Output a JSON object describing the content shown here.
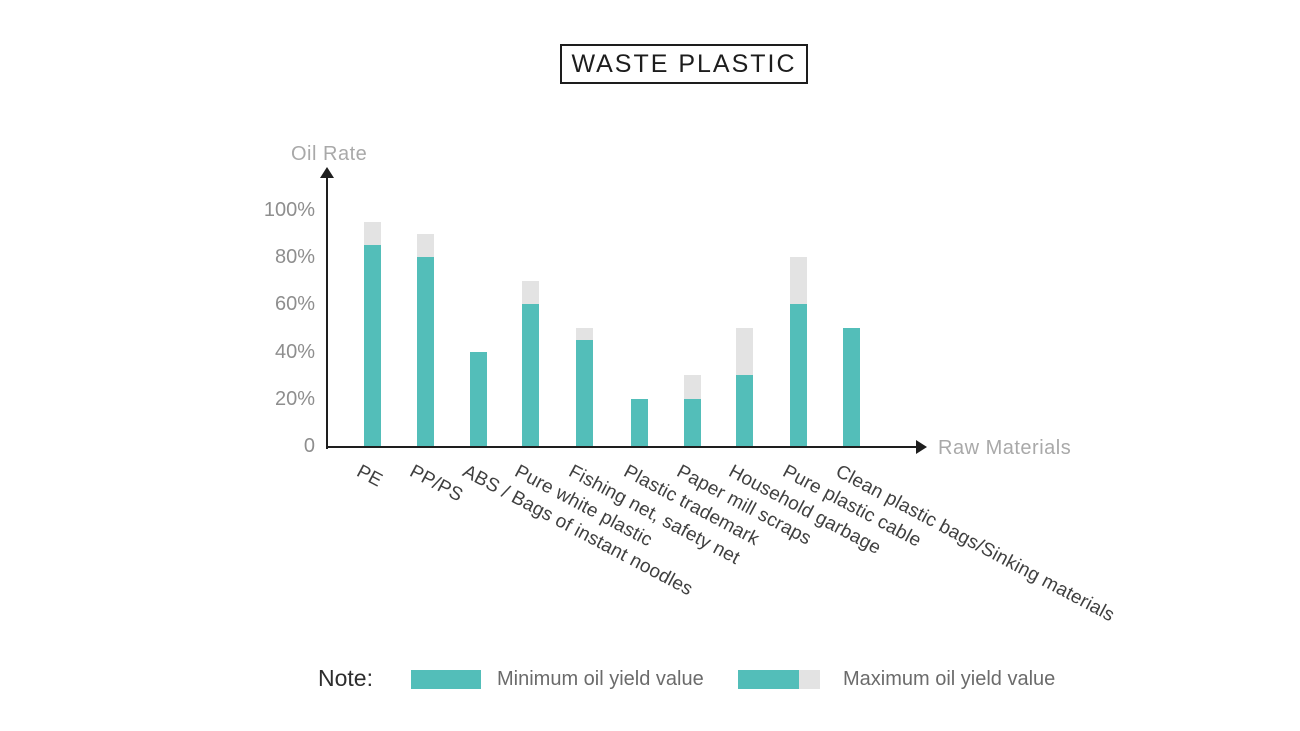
{
  "title": "WASTE PLASTIC",
  "y_axis": {
    "label": "Oil Rate",
    "ticks": [
      {
        "value": 100,
        "label": "100%"
      },
      {
        "value": 80,
        "label": "80%"
      },
      {
        "value": 60,
        "label": "60%"
      },
      {
        "value": 40,
        "label": "40%"
      },
      {
        "value": 20,
        "label": "20%"
      },
      {
        "value": 0,
        "label": "0"
      }
    ]
  },
  "x_axis": {
    "label": "Raw Materials"
  },
  "legend": {
    "note_label": "Note:",
    "min_label": "Minimum oil yield value",
    "max_label": "Maximum oil yield value"
  },
  "colors": {
    "bar_teal": "#53BEB9",
    "bar_gray_cap": "#E3E3E3",
    "axis_line": "#1e1e1e",
    "axis_title_text": "#a9a9a9",
    "tick_text": "#8e8e8e",
    "category_text": "#3f3f3f",
    "legend_text": "#6b6b6b"
  },
  "chart_data": {
    "type": "bar",
    "stacked": true,
    "title": "WASTE PLASTIC",
    "xlabel": "Raw Materials",
    "ylabel": "Oil Rate",
    "ylim": [
      0,
      100
    ],
    "grid": false,
    "legend_position": "bottom",
    "categories": [
      "PE",
      "PP/PS",
      "ABS / Bags of instant noodles",
      "Pure white plastic",
      "Fishing net, safety net",
      "Plastic trademark",
      "Paper mill scraps",
      "Household garbage",
      "Pure plastic cable",
      "Clean plastic bags/Sinking materials"
    ],
    "series": [
      {
        "name": "Minimum oil yield value",
        "values": [
          85,
          80,
          40,
          60,
          45,
          20,
          20,
          30,
          60,
          50
        ]
      },
      {
        "name": "Maximum oil yield value",
        "values": [
          95,
          90,
          40,
          70,
          50,
          20,
          30,
          50,
          80,
          50
        ]
      }
    ]
  }
}
